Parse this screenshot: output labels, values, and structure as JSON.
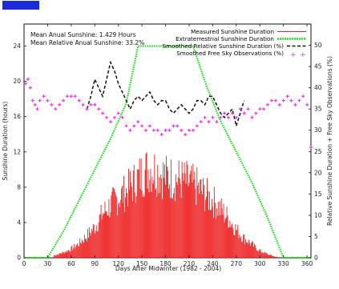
{
  "chart_data": {
    "type": "line",
    "xlabel": "Days After Midwinter (1982 - 2004)",
    "ylabel_left": "Sunshine Duration (hours)",
    "ylabel_right": "Relative Sunshine Duration + Free Sky Observations (%)",
    "xlim": [
      0,
      365
    ],
    "ylim_left": [
      0,
      26.5
    ],
    "ylim_right": [
      0,
      55
    ],
    "x_ticks": [
      0,
      30,
      60,
      90,
      120,
      150,
      180,
      210,
      240,
      270,
      300,
      330,
      360
    ],
    "y_ticks_left": [
      0,
      4,
      8,
      12,
      16,
      20,
      24
    ],
    "y_ticks_right": [
      0,
      5,
      10,
      15,
      20,
      25,
      30,
      35,
      40,
      45,
      50
    ],
    "annotations": [
      "Mean Anual Sunshine: 1.429 Hours",
      "Mean Relative Anual Sunshine: 33.2%"
    ],
    "legend_position": "top-right",
    "series": [
      {
        "name": "Measured Sunshine Duration",
        "axis": "left",
        "style": "bars",
        "color": "#ee2222",
        "x": [
          40,
          50,
          60,
          70,
          80,
          90,
          100,
          110,
          120,
          130,
          140,
          150,
          160,
          170,
          180,
          190,
          200,
          210,
          220,
          230,
          240,
          250,
          260,
          270,
          280,
          290,
          300,
          310,
          320
        ],
        "values": [
          0.3,
          0.6,
          1.0,
          1.6,
          2.5,
          3.5,
          5.0,
          6.0,
          6.8,
          7.5,
          8.5,
          9.5,
          10.2,
          9.8,
          9.2,
          9.0,
          8.8,
          8.5,
          8.0,
          7.2,
          6.5,
          5.5,
          4.5,
          3.2,
          2.2,
          1.5,
          0.8,
          0.4,
          0.1
        ]
      },
      {
        "name": "Extraterrestrial Sunshine Duration",
        "axis": "left",
        "style": "dotted",
        "color": "#22dd22",
        "x": [
          0,
          30,
          50,
          70,
          90,
          110,
          130,
          145,
          215,
          232,
          250,
          270,
          290,
          310,
          330,
          365
        ],
        "values": [
          0,
          0,
          3.0,
          6.5,
          10.0,
          13.5,
          17.5,
          24,
          24,
          19.5,
          15.5,
          12.0,
          8.5,
          4.5,
          0,
          0
        ]
      },
      {
        "name": "Smoothed Relative Sunshine Duration (%)",
        "axis": "right",
        "style": "dashed",
        "color": "#111111",
        "x": [
          80,
          85,
          90,
          95,
          100,
          105,
          110,
          115,
          120,
          125,
          130,
          135,
          140,
          145,
          150,
          155,
          160,
          165,
          170,
          175,
          180,
          185,
          190,
          195,
          200,
          205,
          210,
          215,
          220,
          225,
          230,
          235,
          240,
          245,
          250,
          255,
          260,
          265,
          270,
          275,
          280
        ],
        "values": [
          35,
          38,
          42,
          40,
          38,
          42,
          46,
          44,
          41,
          39,
          37,
          35,
          37,
          38,
          37,
          38,
          39,
          37,
          36,
          37,
          37,
          35,
          34,
          35,
          36,
          35,
          34,
          35,
          37,
          37,
          36,
          38,
          38,
          36,
          34,
          33,
          34,
          35,
          31,
          34,
          37
        ]
      },
      {
        "name": "Smoothed Free Sky Observations (%)",
        "axis": "right",
        "style": "dots",
        "color": "#ee33ee",
        "x": [
          2,
          5,
          8,
          11,
          14,
          17,
          20,
          25,
          30,
          35,
          40,
          45,
          50,
          55,
          60,
          65,
          70,
          75,
          80,
          85,
          90,
          95,
          100,
          105,
          110,
          115,
          120,
          125,
          130,
          135,
          140,
          145,
          150,
          155,
          160,
          165,
          170,
          175,
          180,
          185,
          190,
          195,
          200,
          205,
          210,
          215,
          220,
          225,
          230,
          235,
          240,
          245,
          250,
          255,
          260,
          265,
          270,
          275,
          280,
          285,
          290,
          295,
          300,
          305,
          310,
          315,
          320,
          325,
          330,
          335,
          340,
          345,
          350,
          355,
          360,
          365
        ],
        "values": [
          41,
          42,
          40,
          37,
          36,
          35,
          37,
          38,
          37,
          36,
          35,
          36,
          37,
          38,
          38,
          38,
          37,
          36,
          35,
          36,
          36,
          35,
          34,
          33,
          32,
          33,
          34,
          33,
          31,
          30,
          31,
          32,
          31,
          30,
          31,
          30,
          30,
          29,
          30,
          30,
          31,
          31,
          30,
          29,
          30,
          30,
          31,
          32,
          33,
          32,
          33,
          32,
          33,
          34,
          33,
          34,
          33,
          35,
          34,
          35,
          33,
          34,
          35,
          35,
          36,
          37,
          37,
          36,
          37,
          38,
          37,
          36,
          37,
          38,
          36,
          26
        ]
      }
    ]
  }
}
